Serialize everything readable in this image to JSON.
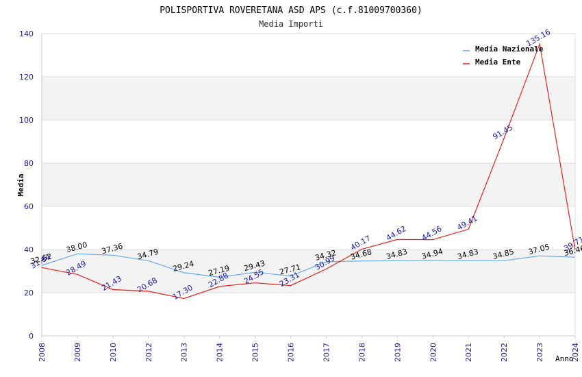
{
  "chart_data": {
    "type": "line",
    "title": "POLISPORTIVA ROVERETANA ASD APS (c.f.81009700360)",
    "subtitle": "Media Importi",
    "xlabel": "Anno",
    "ylabel": "Media",
    "ylim": [
      0,
      140
    ],
    "yticks": [
      "0",
      "20",
      "40",
      "60",
      "80",
      "100",
      "120",
      "140"
    ],
    "categories": [
      "2008",
      "2009",
      "2010",
      "2012",
      "2013",
      "2014",
      "2015",
      "2016",
      "2017",
      "2018",
      "2019",
      "2020",
      "2021",
      "2022",
      "2023",
      "2024"
    ],
    "series": [
      {
        "name": "Media Nazionale",
        "color": "#66aaee",
        "values": [
          32.62,
          38.0,
          37.36,
          34.79,
          29.24,
          27.19,
          29.43,
          27.71,
          34.32,
          34.68,
          34.83,
          34.94,
          34.83,
          34.85,
          37.05,
          36.46
        ],
        "labels": [
          "32.62",
          "38.00",
          "37.36",
          "34.79",
          "29.24",
          "27.19",
          "29.43",
          "27.71",
          "34.32",
          "34.68",
          "34.83",
          "34.94",
          "34.83",
          "34.85",
          "37.05",
          "36.46"
        ]
      },
      {
        "name": "Media Ente",
        "color": "#e8201a",
        "values": [
          31.64,
          28.49,
          21.43,
          20.68,
          17.3,
          22.88,
          24.55,
          23.31,
          30.99,
          40.17,
          44.62,
          44.56,
          49.41,
          91.45,
          135.16,
          39.71
        ],
        "labels": [
          "31.64",
          "28.49",
          "21.43",
          "20.68",
          "17.30",
          "22.88",
          "24.55",
          "23.31",
          "30.99",
          "40.17",
          "44.62",
          "44.56",
          "49.41",
          "91.45",
          "135.16",
          "39.71"
        ]
      }
    ],
    "legend": "top-right",
    "grid": true
  }
}
